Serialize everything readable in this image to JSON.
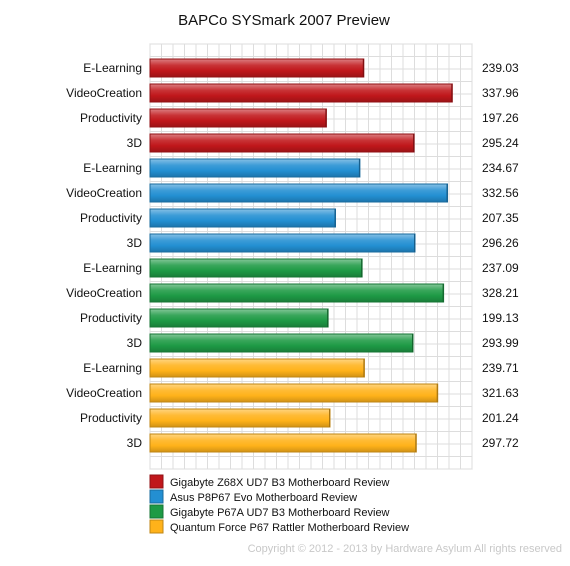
{
  "chart_data": {
    "type": "bar",
    "orientation": "horizontal",
    "title": "BAPCo SYSmark 2007 Preview",
    "xlabel": "",
    "ylabel": "",
    "xlim": [
      0,
      360
    ],
    "grid": true,
    "legend_position": "bottom-left",
    "categories": [
      "E-Learning",
      "VideoCreation",
      "Productivity",
      "3D"
    ],
    "series": [
      {
        "name": "Gigabyte Z68X UD7 B3 Motherboard Review",
        "color": "#c0171b",
        "values": [
          239.03,
          337.96,
          197.26,
          295.24
        ]
      },
      {
        "name": "Asus P8P67 Evo Motherboard Review",
        "color": "#238fd2",
        "values": [
          234.67,
          332.56,
          207.35,
          296.26
        ]
      },
      {
        "name": "Gigabyte P67A UD7 B3 Motherboard Review",
        "color": "#1e9a45",
        "values": [
          237.09,
          328.21,
          199.13,
          293.99
        ]
      },
      {
        "name": "Quantum Force P67 Rattler Motherboard Review",
        "color": "#ffb21a",
        "values": [
          239.71,
          321.63,
          201.24,
          297.72
        ]
      }
    ],
    "value_labels": [
      [
        "239.03",
        "337.96",
        "197.26",
        "295.24"
      ],
      [
        "234.67",
        "332.56",
        "207.35",
        "296.26"
      ],
      [
        "237.09",
        "328.21",
        "199.13",
        "293.99"
      ],
      [
        "239.71",
        "321.63",
        "201.24",
        "297.72"
      ]
    ]
  },
  "footer": {
    "copyright": "Copyright © 2012 - 2013 by Hardware Asylum All rights reserved"
  },
  "colors": {
    "grid": "#dddddd",
    "frame": "#cfcfcf",
    "copyright": "#c8c8c8"
  }
}
